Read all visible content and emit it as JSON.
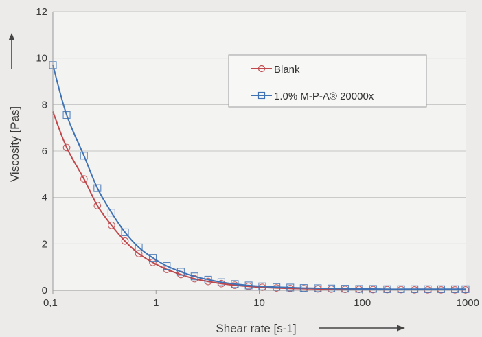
{
  "chart_data": {
    "type": "line",
    "xlabel": "Shear rate [s-1]",
    "ylabel": "Viscosity [Pas]",
    "x_scale": "log",
    "xlim": [
      0.1,
      1000
    ],
    "ylim": [
      0,
      12
    ],
    "x_ticks": [
      0.1,
      1,
      10,
      100,
      1000
    ],
    "x_tick_labels": [
      "0,1",
      "1",
      "10",
      "100",
      "1000"
    ],
    "y_ticks": [
      0,
      2,
      4,
      6,
      8,
      10,
      12
    ],
    "y_tick_labels": [
      "0",
      "2",
      "4",
      "6",
      "8",
      "10",
      "12"
    ],
    "grid": "horizontal",
    "legend_position": "top-right",
    "series": [
      {
        "name": "Blank",
        "color": "#c0474b",
        "marker": "circle",
        "x": [
          0.136,
          0.2,
          0.27,
          0.37,
          0.5,
          0.68,
          0.93,
          1.27,
          1.74,
          2.36,
          3.2,
          4.3,
          5.8,
          7.9,
          10.7,
          14.7,
          20,
          27,
          37,
          50,
          68,
          93,
          127,
          174,
          237,
          320,
          430,
          580,
          790,
          1000
        ],
        "values": [
          6.15,
          4.8,
          3.65,
          2.8,
          2.12,
          1.58,
          1.2,
          0.9,
          0.68,
          0.5,
          0.38,
          0.29,
          0.22,
          0.17,
          0.13,
          0.1,
          0.08,
          0.07,
          0.06,
          0.05,
          0.04,
          0.04,
          0.03,
          0.03,
          0.03,
          0.02,
          0.02,
          0.02,
          0.02,
          0.02
        ],
        "curve": {
          "x": [
            0.1,
            0.136,
            0.2,
            0.27,
            0.37,
            0.5,
            0.68,
            0.93,
            1.27,
            1.74,
            2.36,
            3.2,
            4.3,
            5.8,
            7.9,
            10.7,
            14.7,
            20,
            27,
            37,
            50,
            68,
            93,
            127,
            174,
            237,
            320,
            430,
            580,
            790,
            1000
          ],
          "y": [
            7.7,
            6.15,
            4.8,
            3.65,
            2.8,
            2.12,
            1.58,
            1.2,
            0.9,
            0.68,
            0.5,
            0.38,
            0.29,
            0.22,
            0.17,
            0.13,
            0.1,
            0.08,
            0.07,
            0.06,
            0.05,
            0.04,
            0.04,
            0.03,
            0.03,
            0.03,
            0.02,
            0.02,
            0.02,
            0.02,
            0.02
          ]
        }
      },
      {
        "name": "1.0% M-P-A® 20000x",
        "color": "#3f72b5",
        "marker": "square",
        "x": [
          0.1,
          0.136,
          0.2,
          0.27,
          0.37,
          0.5,
          0.68,
          0.93,
          1.27,
          1.74,
          2.36,
          3.2,
          4.3,
          5.8,
          7.9,
          10.7,
          14.7,
          20,
          27,
          37,
          50,
          68,
          93,
          127,
          174,
          237,
          320,
          430,
          580,
          790,
          1000
        ],
        "values": [
          9.7,
          7.55,
          5.8,
          4.4,
          3.35,
          2.5,
          1.85,
          1.4,
          1.05,
          0.8,
          0.6,
          0.46,
          0.35,
          0.27,
          0.21,
          0.17,
          0.14,
          0.12,
          0.1,
          0.09,
          0.08,
          0.07,
          0.06,
          0.06,
          0.05,
          0.05,
          0.05,
          0.05,
          0.05,
          0.05,
          0.05
        ]
      }
    ]
  }
}
